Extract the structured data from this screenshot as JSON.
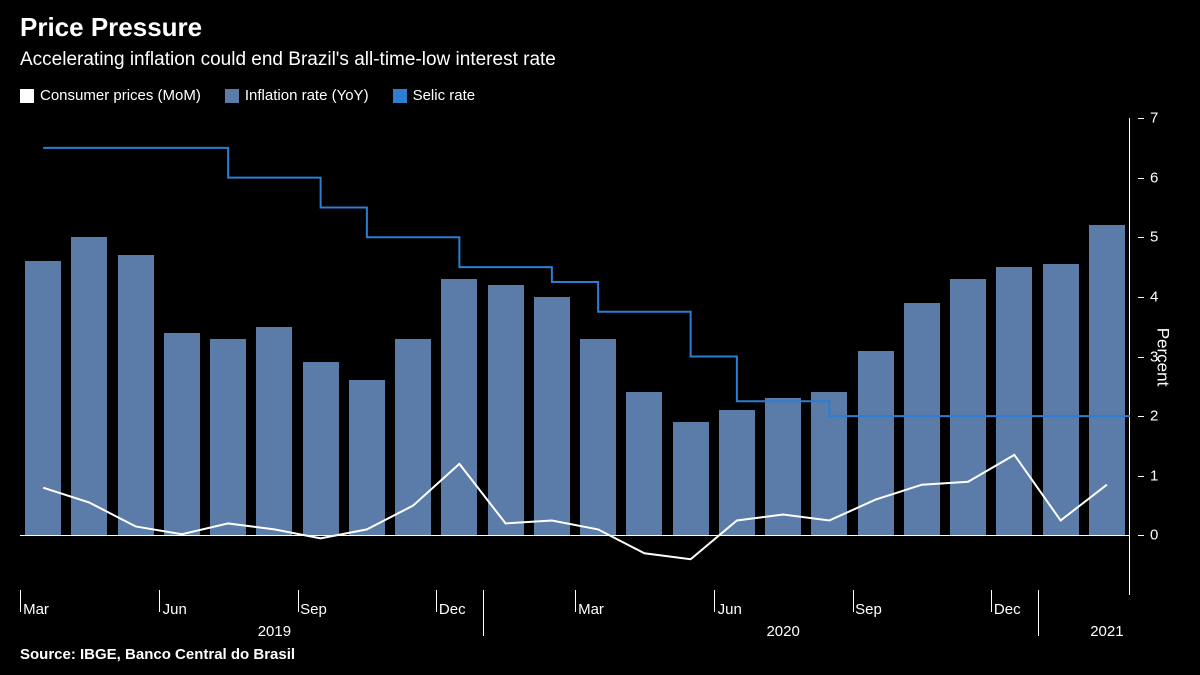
{
  "title": "Price Pressure",
  "subtitle": "Accelerating inflation could end Brazil's all-time-low interest rate",
  "source": "Source: IBGE, Banco Central do Brasil",
  "ylabel": "Percent",
  "chart": {
    "type": "bar+line",
    "ylim": [
      -1,
      7
    ],
    "yticks": [
      0,
      1,
      2,
      3,
      4,
      5,
      6,
      7
    ],
    "bar_color": "#5b7ba8",
    "line_white": "#ffffff",
    "line_blue": "#2d7dd2",
    "background": "#000000",
    "bar_width_ratio": 0.78,
    "line_width": 2,
    "categories": [
      "2019-03",
      "2019-04",
      "2019-05",
      "2019-06",
      "2019-07",
      "2019-08",
      "2019-09",
      "2019-10",
      "2019-11",
      "2019-12",
      "2020-01",
      "2020-02",
      "2020-03",
      "2020-04",
      "2020-05",
      "2020-06",
      "2020-07",
      "2020-08",
      "2020-09",
      "2020-10",
      "2020-11",
      "2020-12",
      "2021-01",
      "2021-02"
    ],
    "x_month_labels": [
      {
        "idx": 0,
        "label": "Mar"
      },
      {
        "idx": 3,
        "label": "Jun"
      },
      {
        "idx": 6,
        "label": "Sep"
      },
      {
        "idx": 9,
        "label": "Dec"
      },
      {
        "idx": 12,
        "label": "Mar"
      },
      {
        "idx": 15,
        "label": "Jun"
      },
      {
        "idx": 18,
        "label": "Sep"
      },
      {
        "idx": 21,
        "label": "Dec"
      }
    ],
    "x_year_labels": [
      {
        "pos_idx": 5,
        "label": "2019"
      },
      {
        "pos_idx": 16,
        "label": "2020"
      },
      {
        "pos_idx": 23,
        "label": "2021"
      }
    ],
    "inflation_yoy": [
      4.6,
      5.0,
      4.7,
      3.4,
      3.3,
      3.5,
      2.9,
      2.6,
      3.3,
      4.3,
      4.2,
      4.0,
      3.3,
      2.4,
      1.9,
      2.1,
      2.3,
      2.4,
      3.1,
      3.9,
      4.3,
      4.5,
      4.55,
      5.2
    ],
    "consumer_mom": [
      0.8,
      0.55,
      0.15,
      0.02,
      0.2,
      0.1,
      -0.05,
      0.1,
      0.5,
      1.2,
      0.2,
      0.25,
      0.1,
      -0.3,
      -0.4,
      0.25,
      0.35,
      0.25,
      0.6,
      0.85,
      0.9,
      1.35,
      0.25,
      0.85
    ],
    "selic": [
      6.5,
      6.5,
      6.5,
      6.5,
      6.0,
      6.0,
      5.5,
      5.0,
      5.0,
      4.5,
      4.5,
      4.25,
      3.75,
      3.75,
      3.0,
      2.25,
      2.25,
      2.0,
      2.0,
      2.0,
      2.0,
      2.0,
      2.0,
      2.0
    ]
  },
  "legend": [
    {
      "label": "Consumer prices (MoM)",
      "color": "#ffffff",
      "type": "line"
    },
    {
      "label": "Inflation rate (YoY)",
      "color": "#5b7ba8",
      "type": "bar"
    },
    {
      "label": "Selic rate",
      "color": "#2d7dd2",
      "type": "line"
    }
  ]
}
